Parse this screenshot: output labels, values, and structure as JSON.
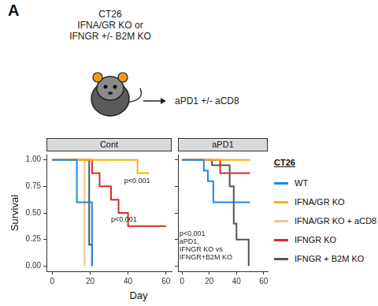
{
  "figure": {
    "panel_label": "A",
    "schematic_text": "CT26\nIFNA/GR KO or\nIFNGR +/- B2M KO",
    "treatment": "aPD1 +/- aCD8",
    "x_label": "Day",
    "legend_title": "CT26"
  },
  "chart_data": [
    {
      "type": "line",
      "title": "Cont",
      "y_label": "Survival",
      "xlim": [
        -3,
        63
      ],
      "xticks": [
        0,
        20,
        40,
        60
      ],
      "ylim": [
        -0.05,
        1.05
      ],
      "yticks": [
        {
          "value": 0,
          "label": "0.00"
        },
        {
          "value": 0.25,
          "label": "0.25"
        },
        {
          "value": 0.5,
          "label": "0.50"
        },
        {
          "value": 0.75,
          "label": "0.75"
        },
        {
          "value": 1,
          "label": "1.00"
        }
      ],
      "grid": false,
      "legend": "right",
      "line_style": "step",
      "annotations": [
        "p<0.001",
        "p<0.001"
      ],
      "series": [
        {
          "name": "WT",
          "color": "#1e88e5",
          "x": [
            0,
            13,
            21
          ],
          "values": [
            1,
            0.6,
            0
          ]
        },
        {
          "name": "IFNA/GR KO",
          "color": "#f5b400",
          "x": [
            0,
            45,
            51
          ],
          "values": [
            1,
            0.875,
            0.875
          ]
        },
        {
          "name": "IFNA/GR KO + aCD8",
          "color": "#e8c49a",
          "x": [
            0,
            17
          ],
          "values": [
            1,
            0
          ]
        },
        {
          "name": "IFNGR KO",
          "color": "#d62a2a",
          "x": [
            0,
            21,
            25,
            31,
            35,
            40,
            60
          ],
          "values": [
            1,
            0.875,
            0.75,
            0.625,
            0.5,
            0.375,
            0.375
          ]
        },
        {
          "name": "IFNGR + B2M KO",
          "color": "#555555",
          "x": [
            0,
            19.5,
            21
          ],
          "values": [
            1,
            0.2,
            0
          ]
        }
      ]
    },
    {
      "type": "line",
      "title": "aPD1",
      "xlim": [
        -3,
        63
      ],
      "xticks": [
        0,
        20,
        40,
        60
      ],
      "ylim": [
        -0.05,
        1.05
      ],
      "yticks": [
        {
          "value": 0,
          "label": "0.00"
        },
        {
          "value": 0.25,
          "label": "0.25"
        },
        {
          "value": 0.5,
          "label": "0.50"
        },
        {
          "value": 0.75,
          "label": "0.75"
        },
        {
          "value": 1,
          "label": "1.00"
        }
      ],
      "grid": false,
      "legend": "right",
      "line_style": "step",
      "tick_labels": "x",
      "annotations": [
        "p<0.001\naPD1,\nIFNGR KO vs\nIFNGR+B2M KO"
      ],
      "series": [
        {
          "name": "WT",
          "color": "#1e88e5",
          "x": [
            0,
            16,
            19,
            23,
            50
          ],
          "values": [
            1,
            0.9,
            0.8,
            0.6,
            0.6
          ]
        },
        {
          "name": "IFNA/GR KO",
          "color": "#f5b400",
          "x": [
            0,
            50
          ],
          "values": [
            1,
            1
          ]
        },
        {
          "name": "IFNGR KO",
          "color": "#d62a2a",
          "x": [
            0,
            28,
            50
          ],
          "values": [
            1,
            0.875,
            0.875
          ]
        },
        {
          "name": "IFNGR + B2M KO",
          "color": "#555555",
          "x": [
            0,
            22,
            35,
            38,
            40,
            49
          ],
          "values": [
            1,
            0.95,
            0.75,
            0.4,
            0.25,
            0
          ]
        }
      ]
    }
  ]
}
